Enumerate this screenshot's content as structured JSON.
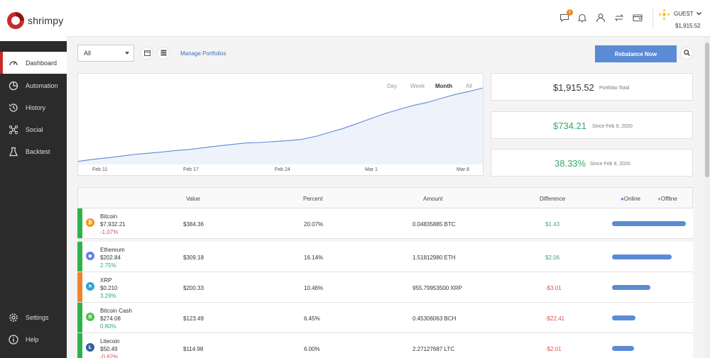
{
  "app": {
    "name": "shrimpy"
  },
  "sidebar": {
    "items": [
      {
        "label": "Dashboard",
        "icon": "gauge-icon",
        "active": true
      },
      {
        "label": "Automation",
        "icon": "pie-icon"
      },
      {
        "label": "History",
        "icon": "history-icon"
      },
      {
        "label": "Social",
        "icon": "social-icon"
      },
      {
        "label": "Backtest",
        "icon": "flask-icon"
      }
    ],
    "bottom": [
      {
        "label": "Settings",
        "icon": "gear-icon"
      },
      {
        "label": "Help",
        "icon": "info-icon"
      }
    ]
  },
  "topbar": {
    "notification_count": "1",
    "user": "GUEST",
    "balance": "$1,915.52"
  },
  "controls": {
    "portfolio_select": "All",
    "manage_link": "Manage Portfolios",
    "rebalance_label": "Rebalance Now"
  },
  "chart": {
    "ranges": [
      "Day",
      "Week",
      "Month",
      "All"
    ],
    "active_range": "Month",
    "x_ticks": [
      "Feb 11",
      "Feb 17",
      "Feb 24",
      "Mar 1",
      "Mar 8"
    ]
  },
  "chart_data": {
    "type": "area",
    "title": "",
    "xlabel": "",
    "ylabel": "",
    "x": [
      "Feb 9",
      "Feb 10",
      "Feb 11",
      "Feb 12",
      "Feb 13",
      "Feb 14",
      "Feb 15",
      "Feb 16",
      "Feb 17",
      "Feb 18",
      "Feb 19",
      "Feb 20",
      "Feb 21",
      "Feb 22",
      "Feb 23",
      "Feb 24",
      "Feb 25",
      "Feb 26",
      "Feb 27",
      "Feb 28",
      "Feb 29",
      "Mar 1",
      "Mar 2",
      "Mar 3",
      "Mar 4",
      "Mar 5",
      "Mar 6",
      "Mar 7",
      "Mar 8",
      "Mar 9"
    ],
    "series": [
      {
        "values": [
          1181,
          1200,
          1215,
          1232,
          1250,
          1262,
          1275,
          1290,
          1300,
          1318,
          1335,
          1350,
          1365,
          1370,
          1378,
          1388,
          1400,
          1430,
          1470,
          1510,
          1560,
          1610,
          1660,
          1700,
          1740,
          1770,
          1810,
          1850,
          1880,
          1915
        ]
      }
    ],
    "ylim": [
      1150,
      1930
    ],
    "color": "#5b8bd6",
    "fill": "#eef3fb",
    "grid": false
  },
  "stats": [
    {
      "value": "$1,915.52",
      "label": "Portfolio Total",
      "color": "#333333"
    },
    {
      "value": "$734.21",
      "label": "Since Feb 9, 2020",
      "color": "#3aa86b"
    },
    {
      "value": "38.33%",
      "label": "Since Feb 9, 2020",
      "color": "#3aa86b"
    }
  ],
  "table": {
    "headers": {
      "value": "Value",
      "percent": "Percent",
      "amount": "Amount",
      "difference": "Difference",
      "online": "Online",
      "offline": "Offline"
    },
    "rows": [
      {
        "name": "Bitcoin",
        "price": "$7,932.21",
        "change": "-1.07%",
        "change_sign": "neg",
        "value": "$384.36",
        "percent": "20.07%",
        "amount": "0.04835885 BTC",
        "difference": "$1.43",
        "diff_sign": "pos",
        "allocation": 0.2007,
        "strip": "#2db34a",
        "icon_color": "#f7931a",
        "icon_glyph": "₿"
      },
      {
        "name": "Ethereum",
        "price": "$202.84",
        "change": "2.75%",
        "change_sign": "pos",
        "value": "$309.18",
        "percent": "16.14%",
        "amount": "1.51812980 ETH",
        "difference": "$2.06",
        "diff_sign": "pos",
        "allocation": 0.1614,
        "strip": "#2db34a",
        "icon_color": "#627eea",
        "icon_glyph": "◆"
      },
      {
        "name": "XRP",
        "price": "$0.210",
        "change": "3.29%",
        "change_sign": "pos",
        "value": "$200.33",
        "percent": "10.46%",
        "amount": "955.79953500 XRP",
        "difference": "-$3.01",
        "diff_sign": "neg",
        "allocation": 0.1046,
        "strip": "#f0832a",
        "icon_color": "#23a6d5",
        "icon_glyph": "✕"
      },
      {
        "name": "Bitcoin Cash",
        "price": "$274.08",
        "change": "0.80%",
        "change_sign": "pos",
        "value": "$123.49",
        "percent": "6.45%",
        "amount": "0.45306063 BCH",
        "difference": "-$22.41",
        "diff_sign": "neg",
        "allocation": 0.0645,
        "strip": "#2db34a",
        "icon_color": "#4cc24c",
        "icon_glyph": "B"
      },
      {
        "name": "Litecoin",
        "price": "$50.49",
        "change": "-0.62%",
        "change_sign": "neg",
        "value": "$114.98",
        "percent": "6.00%",
        "amount": "2.27127687 LTC",
        "difference": "-$2.01",
        "diff_sign": "neg",
        "allocation": 0.06,
        "strip": "#2db34a",
        "icon_color": "#345d9d",
        "icon_glyph": "Ł"
      }
    ]
  }
}
